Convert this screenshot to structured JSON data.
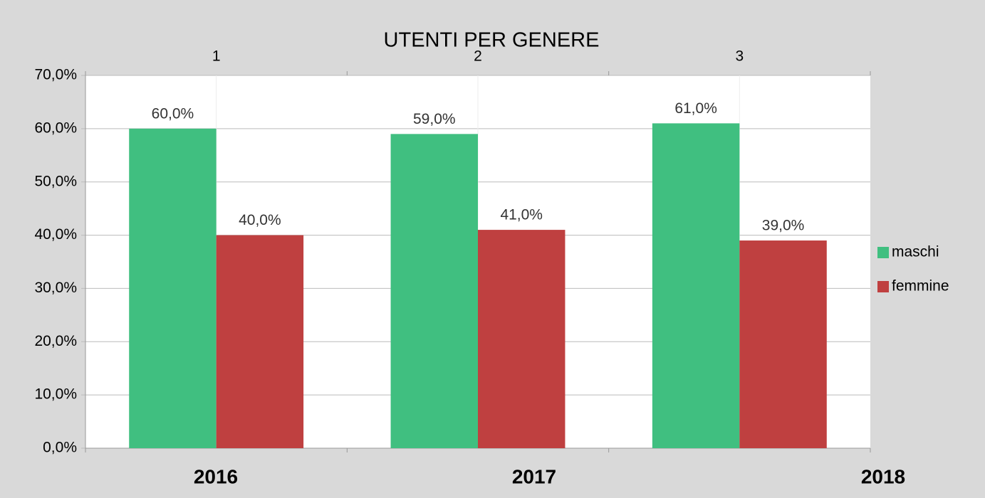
{
  "chart_data": {
    "type": "bar",
    "title": "UTENTI PER GENERE",
    "categories": [
      "1",
      "2",
      "3"
    ],
    "bottom_labels": [
      "2016",
      "2017",
      "2018"
    ],
    "series": [
      {
        "name": "maschi",
        "color": "#40bf80",
        "values": [
          60,
          59,
          61
        ],
        "value_labels": [
          "60,0%",
          "59,0%",
          "61,0%"
        ]
      },
      {
        "name": "femmine",
        "color": "#bf4040",
        "values": [
          40,
          41,
          39
        ],
        "value_labels": [
          "40,0%",
          "41,0%",
          "39,0%"
        ]
      }
    ],
    "ylim": [
      0,
      70
    ],
    "yticks": [
      {
        "value": 0,
        "label": "0,0%"
      },
      {
        "value": 10,
        "label": "10,0%"
      },
      {
        "value": 20,
        "label": "20,0%"
      },
      {
        "value": 30,
        "label": "30,0%"
      },
      {
        "value": 40,
        "label": "40,0%"
      },
      {
        "value": 50,
        "label": "50,0%"
      },
      {
        "value": 60,
        "label": "60,0%"
      },
      {
        "value": 70,
        "label": "70,0%"
      }
    ],
    "grid": true,
    "legend": "right"
  }
}
